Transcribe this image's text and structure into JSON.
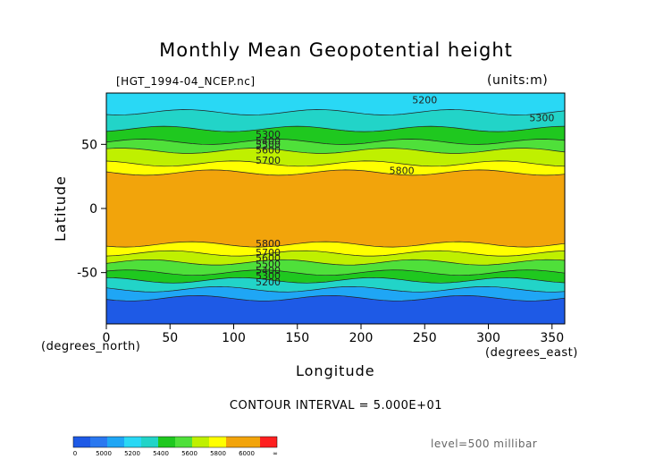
{
  "chart_data": {
    "type": "heatmap",
    "title": "Monthly Mean Geopotential height",
    "subtitle": "[HGT_1994-04_NCEP.nc]",
    "units": "(units:m)",
    "xlabel": "Longitude",
    "ylabel": "Latitude",
    "x_unit_label": "(degrees_east)",
    "y_unit_label": "(degrees_north)",
    "xlim": [
      0,
      360
    ],
    "ylim": [
      -90,
      90
    ],
    "x_ticks": [
      0,
      50,
      100,
      150,
      200,
      250,
      300,
      350
    ],
    "y_ticks": [
      -50,
      0,
      50
    ],
    "contour_interval_text": "CONTOUR INTERVAL = 5.000E+01",
    "level_text": "level=500 millibar",
    "color_levels": [
      {
        "from": 0,
        "to": 5000,
        "color": "#1e5ae6"
      },
      {
        "from": 5000,
        "to": 5100,
        "color": "#2a78f0"
      },
      {
        "from": 5100,
        "to": 5200,
        "color": "#1fa6f5"
      },
      {
        "from": 5200,
        "to": 5300,
        "color": "#29d8f5"
      },
      {
        "from": 5300,
        "to": 5400,
        "color": "#22d4c8"
      },
      {
        "from": 5400,
        "to": 5500,
        "color": "#1fc81f"
      },
      {
        "from": 5500,
        "to": 5600,
        "color": "#4fe03a"
      },
      {
        "from": 5600,
        "to": 5700,
        "color": "#bff000"
      },
      {
        "from": 5700,
        "to": 5800,
        "color": "#ffff00"
      },
      {
        "from": 5800,
        "to": 5900,
        "color": "#f2a40b"
      },
      {
        "from": 5900,
        "to": 6000,
        "color": "#f2a40b"
      },
      {
        "from": 6000,
        "to": 9999,
        "color": "#ff2020"
      }
    ],
    "colorbar_tick_labels": [
      "0",
      "5000",
      "5200",
      "5400",
      "5600",
      "5800",
      "6000",
      "∞"
    ],
    "zonal_bands": [
      {
        "lat_from": 90,
        "lat_to": 75,
        "value": 5250
      },
      {
        "lat_from": 75,
        "lat_to": 62,
        "value": 5300
      },
      {
        "lat_from": 62,
        "lat_to": 52,
        "value": 5450
      },
      {
        "lat_from": 52,
        "lat_to": 45,
        "value": 5550
      },
      {
        "lat_from": 45,
        "lat_to": 35,
        "value": 5650
      },
      {
        "lat_from": 35,
        "lat_to": 28,
        "value": 5750
      },
      {
        "lat_from": 28,
        "lat_to": -28,
        "value": 5850
      },
      {
        "lat_from": -28,
        "lat_to": -35,
        "value": 5750
      },
      {
        "lat_from": -35,
        "lat_to": -42,
        "value": 5650
      },
      {
        "lat_from": -42,
        "lat_to": -50,
        "value": 5550
      },
      {
        "lat_from": -50,
        "lat_to": -56,
        "value": 5450
      },
      {
        "lat_from": -56,
        "lat_to": -63,
        "value": 5300
      },
      {
        "lat_from": -63,
        "lat_to": -70,
        "value": 5150
      },
      {
        "lat_from": -70,
        "lat_to": -90,
        "value": 4950
      }
    ],
    "contour_labels": [
      {
        "text": "5200",
        "lon": 250,
        "lat": 82
      },
      {
        "text": "5300",
        "lon": 342,
        "lat": 68
      },
      {
        "text": "5300",
        "lon": 127,
        "lat": 55
      },
      {
        "text": "5400",
        "lon": 127,
        "lat": 50
      },
      {
        "text": "5500",
        "lon": 127,
        "lat": 47
      },
      {
        "text": "5600",
        "lon": 127,
        "lat": 43
      },
      {
        "text": "5700",
        "lon": 127,
        "lat": 35
      },
      {
        "text": "5800",
        "lon": 232,
        "lat": 27
      },
      {
        "text": "5800",
        "lon": 127,
        "lat": -30
      },
      {
        "text": "5700",
        "lon": 127,
        "lat": -37
      },
      {
        "text": "5600",
        "lon": 127,
        "lat": -41
      },
      {
        "text": "5500",
        "lon": 127,
        "lat": -46
      },
      {
        "text": "5400",
        "lon": 127,
        "lat": -51
      },
      {
        "text": "5300",
        "lon": 127,
        "lat": -55
      },
      {
        "text": "5200",
        "lon": 127,
        "lat": -60
      }
    ]
  }
}
